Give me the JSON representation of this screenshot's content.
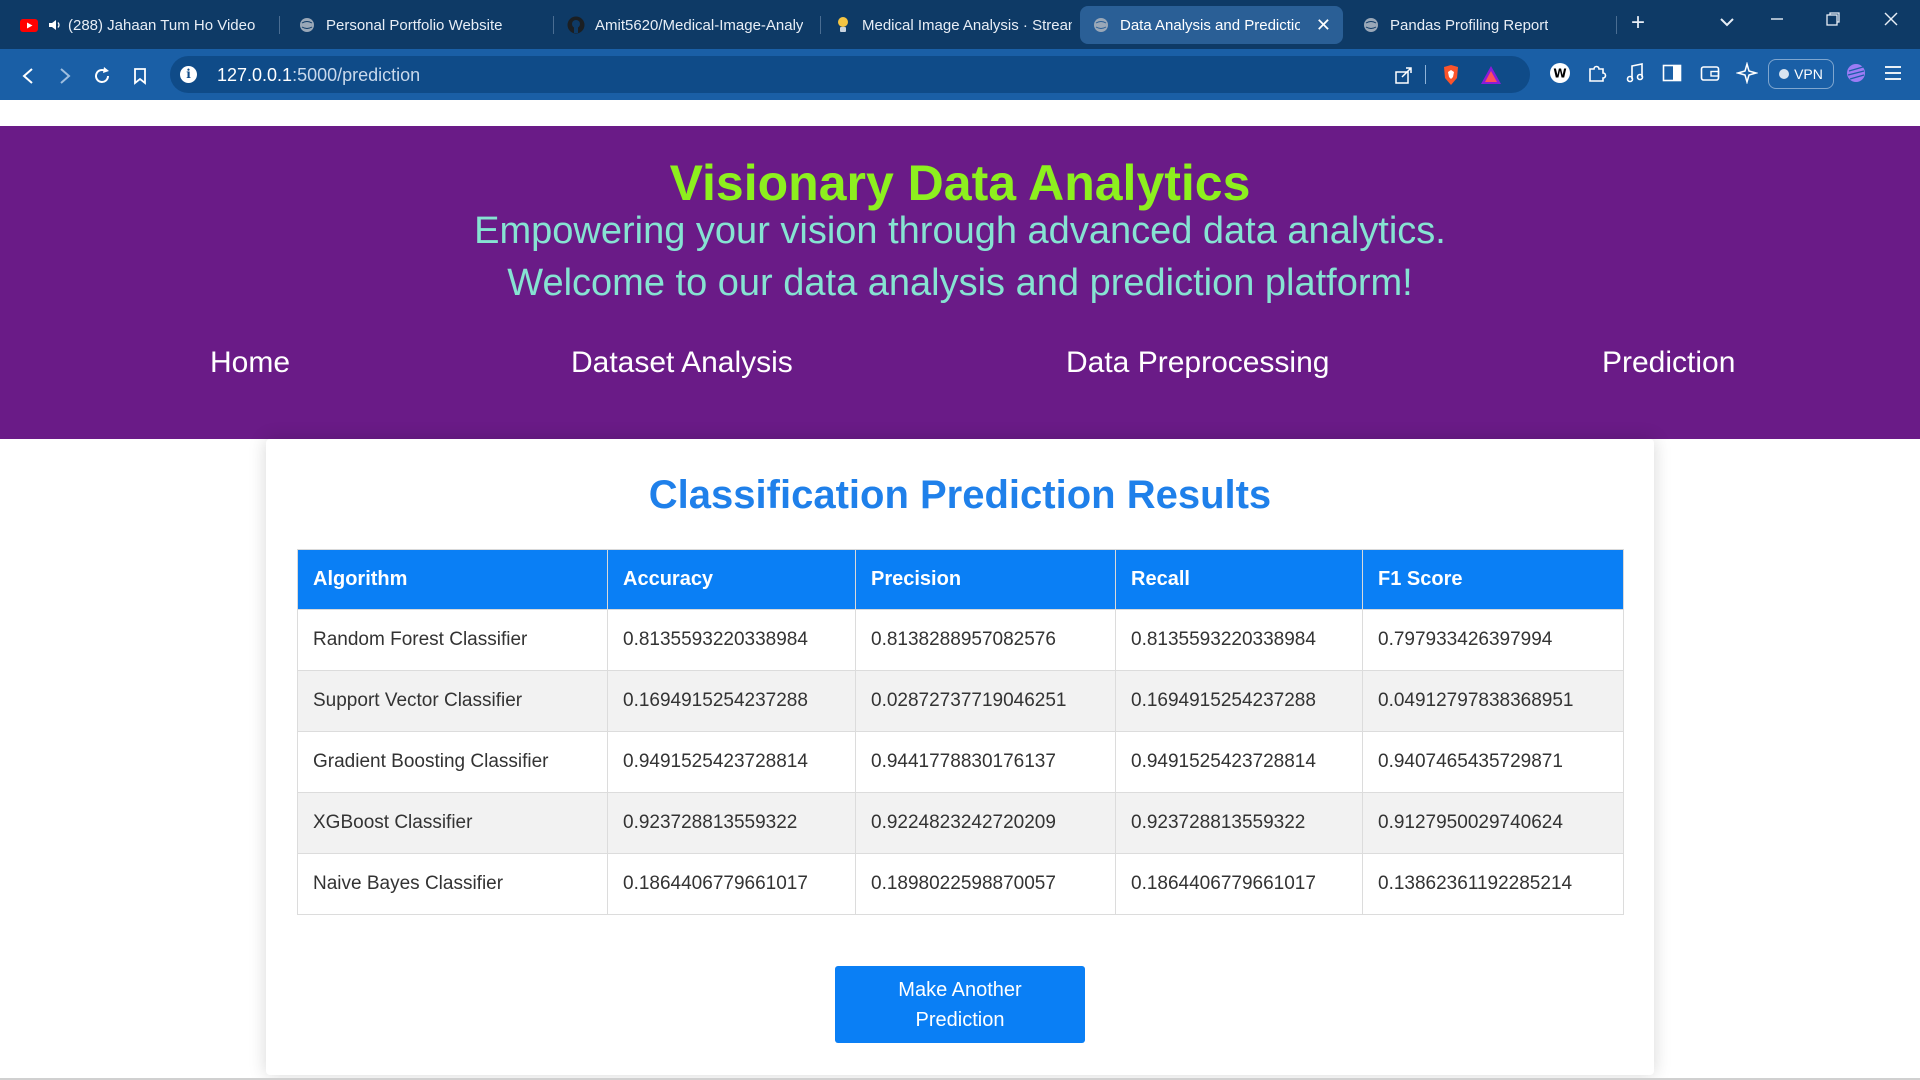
{
  "browser": {
    "tabs": [
      {
        "label": "(288) Jahaan Tum Ho Video",
        "icon": "youtube-icon"
      },
      {
        "label": "Personal Portfolio Website",
        "icon": "globe-icon"
      },
      {
        "label": "Amit5620/Medical-Image-Analy",
        "icon": "github-icon"
      },
      {
        "label": "Medical Image Analysis · Strean",
        "icon": "streamlit-icon"
      },
      {
        "label": "Data Analysis and Predictio",
        "icon": "globe-icon",
        "active": true
      },
      {
        "label": "Pandas Profiling Report",
        "icon": "globe-icon"
      }
    ],
    "new_tab_symbol": "+",
    "url_host": "127.0.0.1",
    "url_path": ":5000/prediction",
    "vpn_label": "VPN"
  },
  "header": {
    "title": "Visionary Data Analytics",
    "tagline": "Empowering your vision through advanced data analytics.",
    "welcome": "Welcome to our data analysis and prediction platform!",
    "nav": [
      "Home",
      "Dataset Analysis",
      "Data Preprocessing",
      "Prediction"
    ]
  },
  "results": {
    "title": "Classification Prediction Results",
    "columns": [
      "Algorithm",
      "Accuracy",
      "Precision",
      "Recall",
      "F1 Score"
    ],
    "rows": [
      [
        "Random Forest Classifier",
        "0.8135593220338984",
        "0.8138288957082576",
        "0.8135593220338984",
        "0.797933426397994"
      ],
      [
        "Support Vector Classifier",
        "0.1694915254237288",
        "0.02872737719046251",
        "0.1694915254237288",
        "0.04912797838368951"
      ],
      [
        "Gradient Boosting Classifier",
        "0.9491525423728814",
        "0.9441778830176137",
        "0.9491525423728814",
        "0.9407465435729871"
      ],
      [
        "XGBoost Classifier",
        "0.923728813559322",
        "0.9224823242720209",
        "0.923728813559322",
        "0.9127950029740624"
      ],
      [
        "Naive Bayes Classifier",
        "0.1864406779661017",
        "0.1898022598870057",
        "0.1864406779661017",
        "0.13862361192285214"
      ]
    ],
    "button_label": "Make Another Prediction"
  },
  "colors": {
    "header_bg": "#6a1b87",
    "title_green": "#8df01e",
    "tagline_teal": "#86e3d2",
    "accent_blue": "#0a7ff5",
    "heading_blue": "#1f80ea"
  }
}
